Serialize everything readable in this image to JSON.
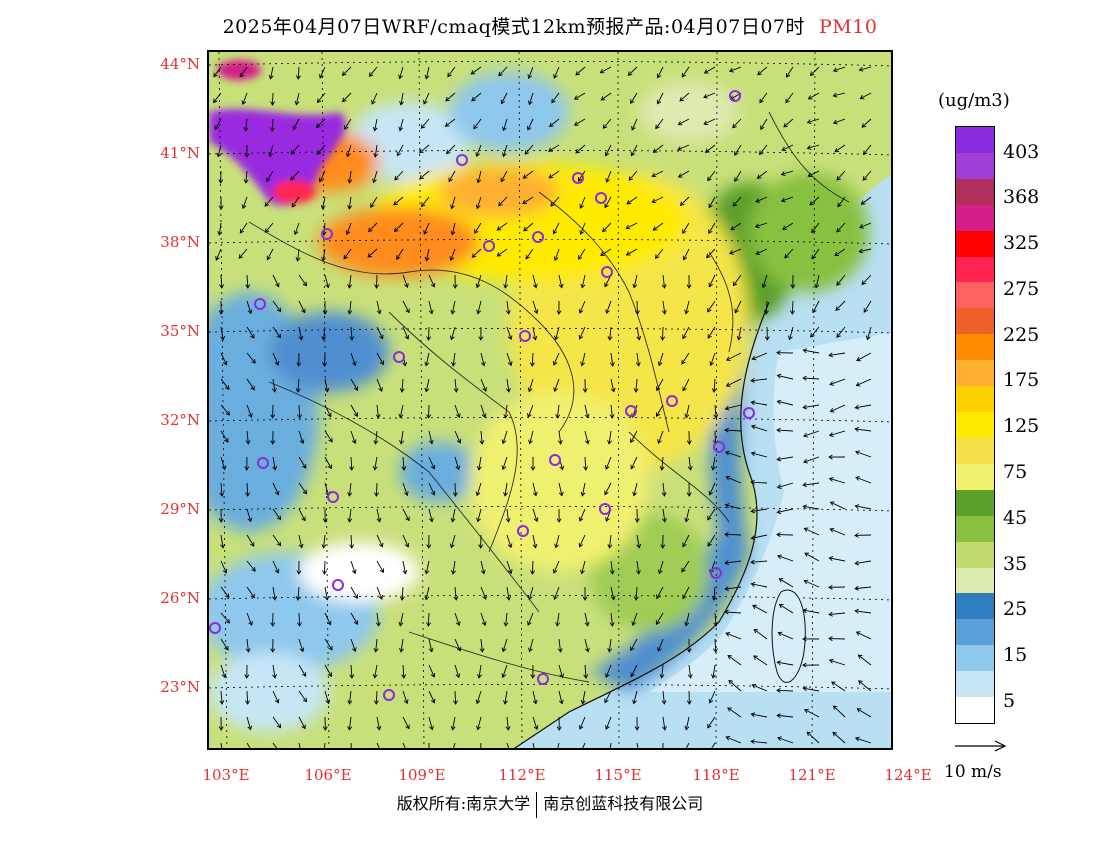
{
  "title": {
    "main": "2025年04月07日WRF/cmaq模式12km预报产品:04月07日07时",
    "pollutant": "PM10"
  },
  "axes": {
    "lat_labels": [
      "44°N",
      "41°N",
      "38°N",
      "35°N",
      "32°N",
      "29°N",
      "26°N",
      "23°N"
    ],
    "lon_labels": [
      "103°E",
      "106°E",
      "109°E",
      "112°E",
      "115°E",
      "118°E",
      "121°E",
      "124°E"
    ],
    "label_color": "#e53030"
  },
  "colorbar": {
    "unit": "(ug/m3)",
    "labels": [
      "403",
      "368",
      "325",
      "275",
      "225",
      "175",
      "125",
      "75",
      "45",
      "35",
      "25",
      "15",
      "5"
    ],
    "colors_top_to_bottom": [
      "#8a2be2",
      "#a23ed8",
      "#b0305a",
      "#d41e8a",
      "#ff0000",
      "#ff2550",
      "#ff6060",
      "#f0602a",
      "#ff8c00",
      "#ffb030",
      "#ffd000",
      "#ffea00",
      "#f5e04a",
      "#f0f070",
      "#5aa02a",
      "#88c040",
      "#c0dc70",
      "#dcebb0",
      "#2f7fc0",
      "#5aa0d8",
      "#8ec8ec",
      "#c6e6f6",
      "#ffffff"
    ]
  },
  "wind_reference": {
    "label": "10 m/s"
  },
  "copyright": {
    "left": "版权所有:南京大学",
    "right": "南京创蓝科技有限公司"
  },
  "palette": {
    "sea": "#b8dff2",
    "high": "#ff8c1a",
    "extreme": "#9a2be0",
    "moderate": "#f5e54a",
    "low_green": "#9fcd55",
    "clean_blue": "#6aaede",
    "coast_blue": "#4f8fd0",
    "stations": "#8a2be2"
  }
}
